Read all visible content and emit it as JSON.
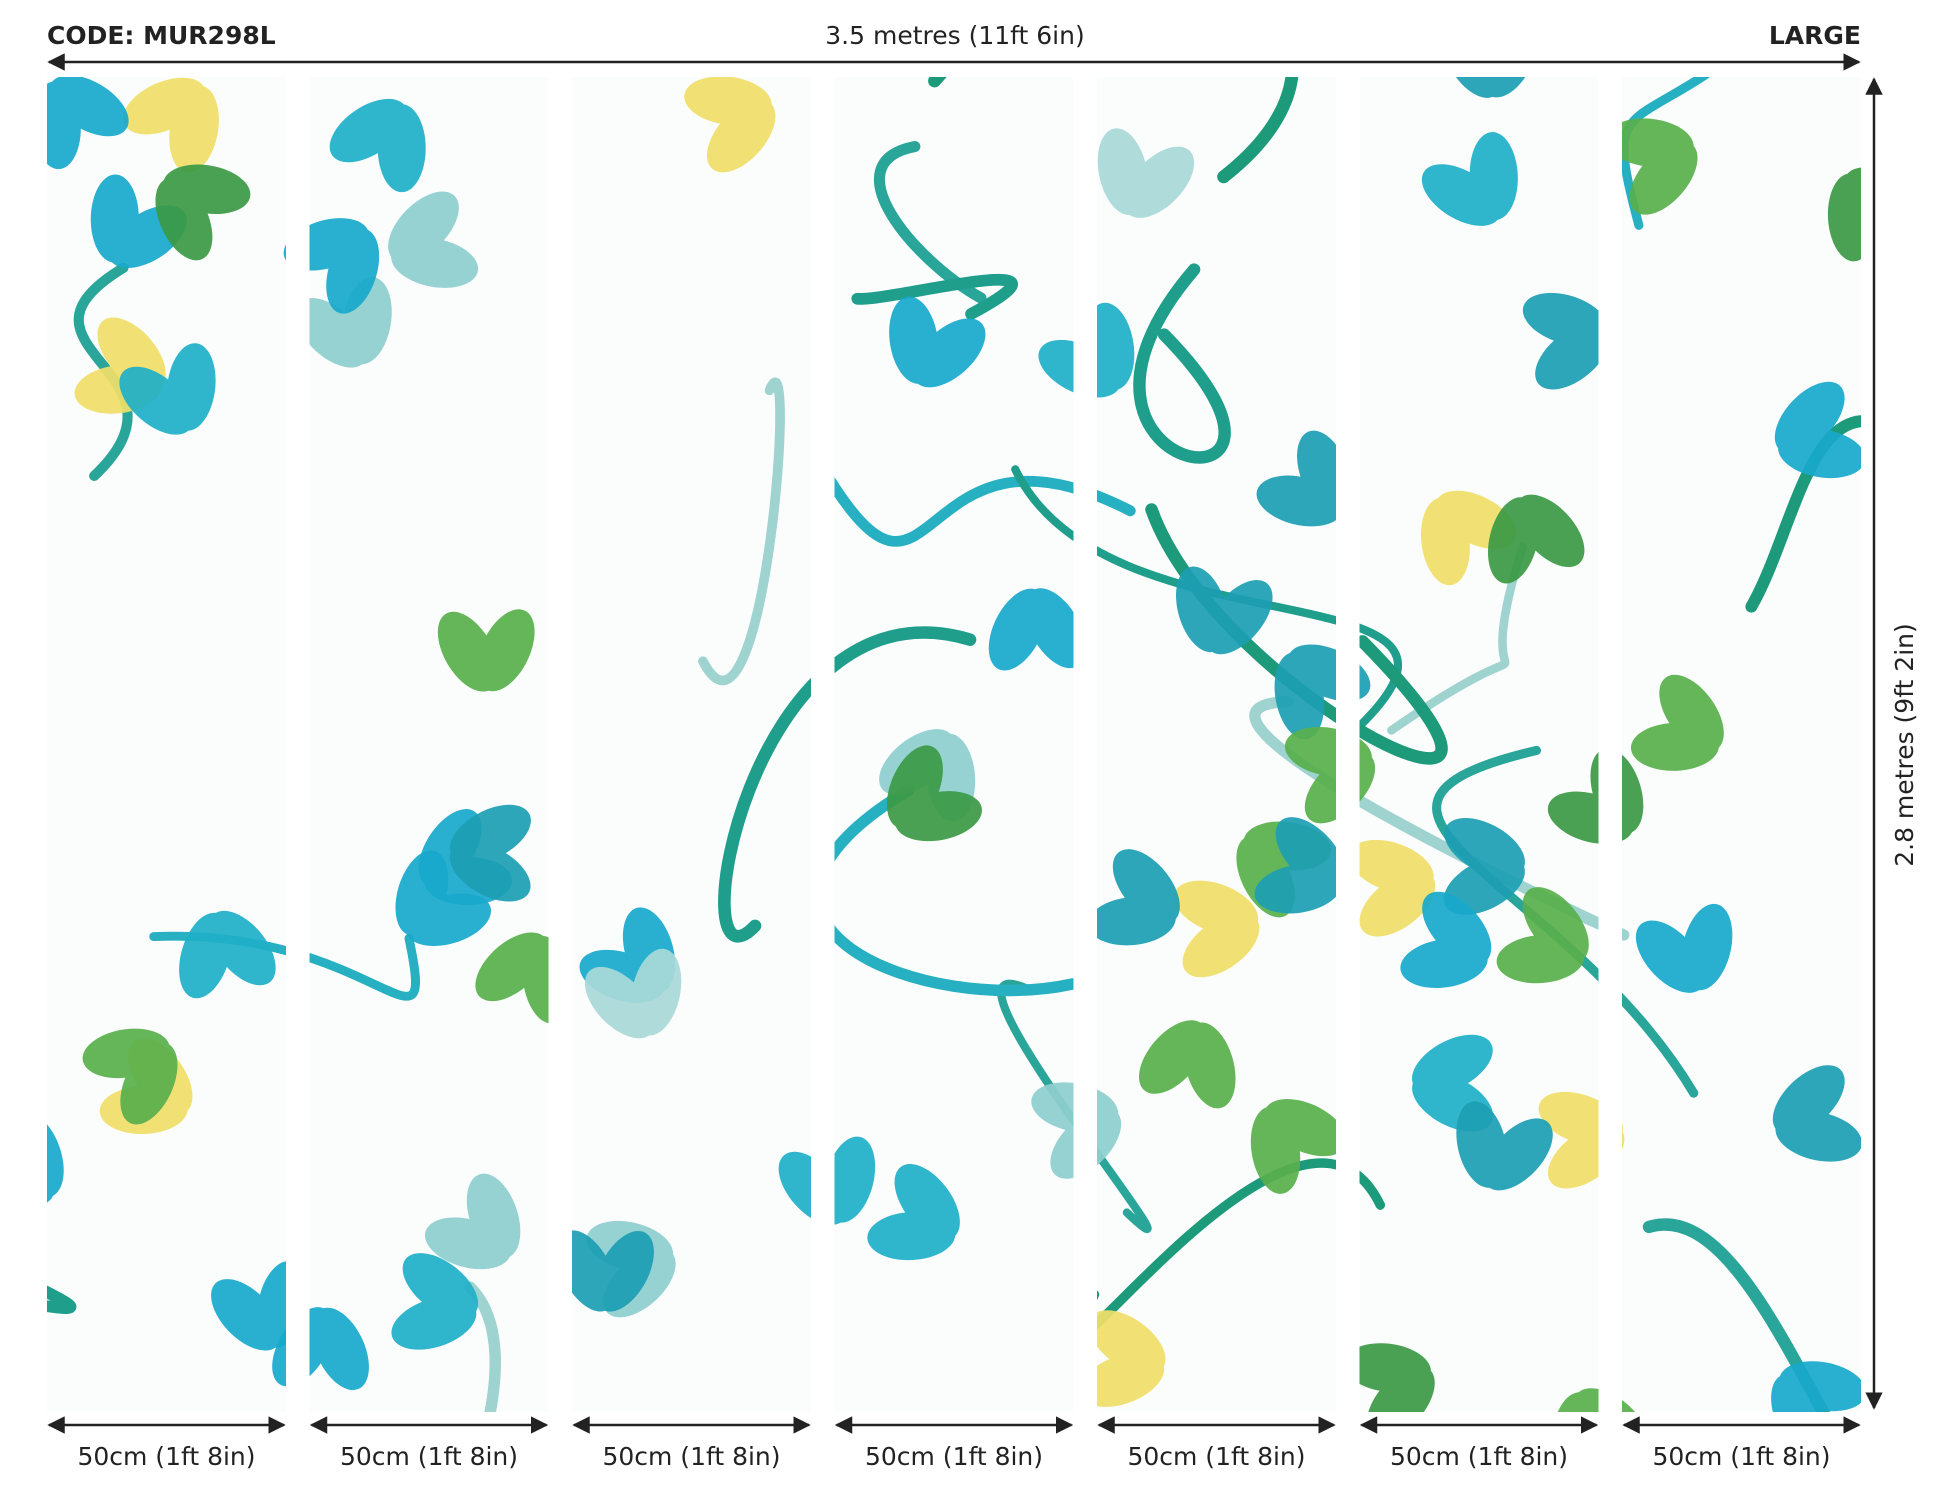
{
  "header": {
    "code": "CODE: MUR298L",
    "width": "3.5 metres (11ft 6in)",
    "size": "LARGE"
  },
  "height": "2.8 metres (9ft 2in)",
  "panels": [
    "50cm (1ft 8in)",
    "50cm (1ft 8in)",
    "50cm (1ft 8in)",
    "50cm (1ft 8in)",
    "50cm (1ft 8in)",
    "50cm (1ft 8in)",
    "50cm (1ft 8in)"
  ]
}
